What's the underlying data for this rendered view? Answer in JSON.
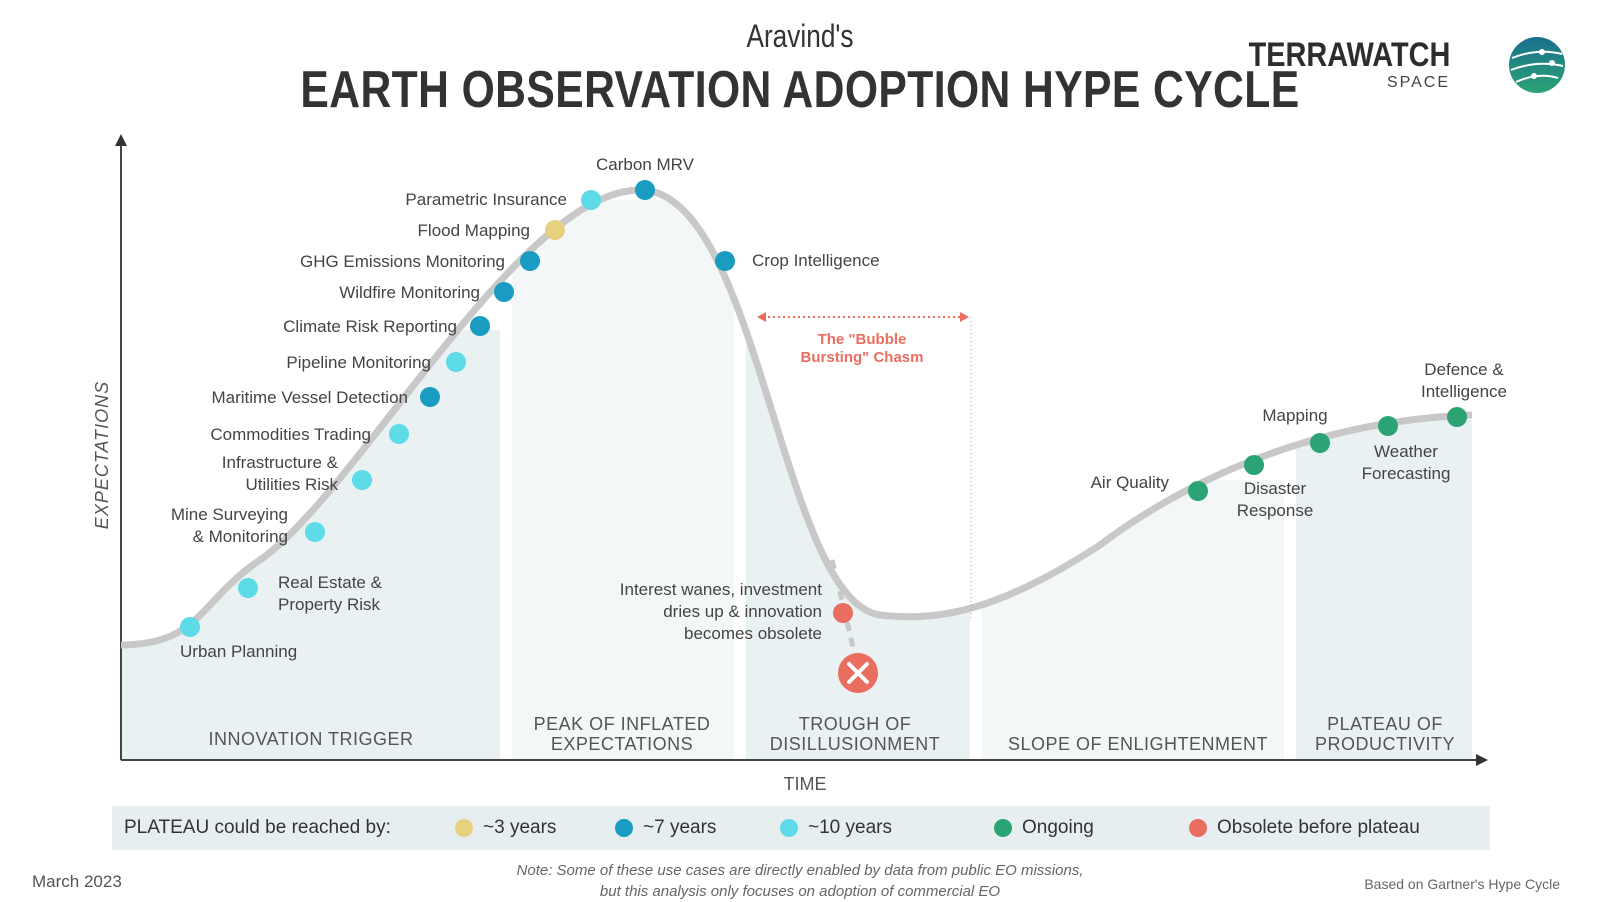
{
  "header": {
    "subtitle": "Aravind's",
    "title": "EARTH OBSERVATION ADOPTION HYPE CYCLE",
    "logo_word": "TERRAWATCH",
    "logo_sub": "SPACE"
  },
  "axes": {
    "y_label": "EXPECTATIONS",
    "x_label": "TIME"
  },
  "phases": [
    {
      "line1": "INNOVATION TRIGGER",
      "line2": ""
    },
    {
      "line1": "PEAK OF INFLATED",
      "line2": "EXPECTATIONS"
    },
    {
      "line1": "TROUGH OF",
      "line2": "DISILLUSIONMENT"
    },
    {
      "line1": "SLOPE OF ENLIGHTENMENT",
      "line2": ""
    },
    {
      "line1": "PLATEAU OF",
      "line2": "PRODUCTIVITY"
    }
  ],
  "colors": {
    "3yrs": "#e8d17e",
    "7yrs": "#1a9bc2",
    "10yrs": "#5ddbe6",
    "ongoing": "#2ca374",
    "obsolete": "#ea6e60",
    "curve": "#c8c8c8",
    "phase_fill": "#e9f1f3"
  },
  "use_cases": [
    {
      "lines": [
        "Urban Planning"
      ],
      "category": "10yrs"
    },
    {
      "lines": [
        "Real Estate &",
        "Property Risk"
      ],
      "category": "10yrs"
    },
    {
      "lines": [
        "Mine Surveying",
        "& Monitoring"
      ],
      "category": "10yrs"
    },
    {
      "lines": [
        "Infrastructure &",
        "Utilities Risk"
      ],
      "category": "10yrs"
    },
    {
      "lines": [
        "Commodities Trading"
      ],
      "category": "10yrs"
    },
    {
      "lines": [
        "Maritime Vessel Detection"
      ],
      "category": "7yrs"
    },
    {
      "lines": [
        "Pipeline Monitoring"
      ],
      "category": "10yrs"
    },
    {
      "lines": [
        "Climate Risk Reporting"
      ],
      "category": "7yrs"
    },
    {
      "lines": [
        "Wildfire Monitoring"
      ],
      "category": "7yrs"
    },
    {
      "lines": [
        "GHG Emissions Monitoring"
      ],
      "category": "7yrs"
    },
    {
      "lines": [
        "Flood Mapping"
      ],
      "category": "3yrs"
    },
    {
      "lines": [
        "Parametric Insurance"
      ],
      "category": "10yrs"
    },
    {
      "lines": [
        "Carbon MRV"
      ],
      "category": "7yrs"
    },
    {
      "lines": [
        "Crop Intelligence"
      ],
      "category": "7yrs"
    },
    {
      "lines": [
        "Interest wanes, investment",
        "dries up & innovation",
        "becomes obsolete"
      ],
      "category": "obsolete"
    },
    {
      "lines": [
        "Air Quality"
      ],
      "category": "ongoing"
    },
    {
      "lines": [
        "Disaster",
        "Response"
      ],
      "category": "ongoing"
    },
    {
      "lines": [
        "Mapping"
      ],
      "category": "ongoing"
    },
    {
      "lines": [
        "Weather",
        "Forecasting"
      ],
      "category": "ongoing"
    },
    {
      "lines": [
        "Defence &",
        "Intelligence"
      ],
      "category": "ongoing"
    }
  ],
  "chasm": {
    "line1": "The \"Bubble",
    "line2": "Bursting\" Chasm"
  },
  "legend": {
    "title": "PLATEAU could be reached by:",
    "items": [
      {
        "label": "~3 years",
        "category": "3yrs"
      },
      {
        "label": "~7 years",
        "category": "7yrs"
      },
      {
        "label": "~10 years",
        "category": "10yrs"
      },
      {
        "label": "Ongoing",
        "category": "ongoing"
      },
      {
        "label": "Obsolete before plateau",
        "category": "obsolete"
      }
    ]
  },
  "footer": {
    "date": "March 2023",
    "note_line1": "Note: Some of these use cases are directly enabled by data from public EO missions,",
    "note_line2": "but this analysis only focuses on adoption of commercial EO",
    "source": "Based on Gartner's Hype Cycle"
  }
}
